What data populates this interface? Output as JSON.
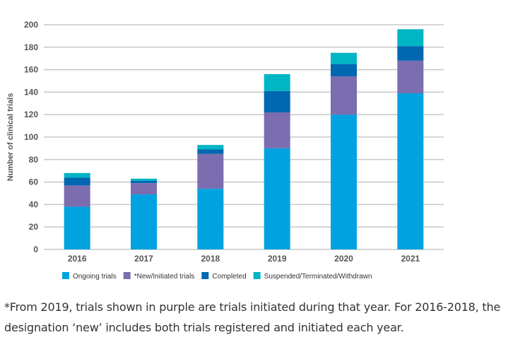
{
  "chart_data": {
    "type": "bar",
    "stacked": true,
    "title": "",
    "xlabel": "",
    "ylabel": "Number of clinical trials",
    "ylim": [
      0,
      200
    ],
    "yticks": [
      0,
      20,
      40,
      60,
      80,
      100,
      120,
      140,
      160,
      180,
      200
    ],
    "grid": true,
    "legend_position": "bottom",
    "categories": [
      "2016",
      "2017",
      "2018",
      "2019",
      "2020",
      "2021"
    ],
    "series": [
      {
        "name": "Ongoing trials",
        "color": "#00a3e0",
        "values": [
          38,
          49,
          54,
          90,
          120,
          139
        ]
      },
      {
        "name": "*New/Initiated trials",
        "color": "#7b6db0",
        "values": [
          19,
          10,
          31,
          32,
          34,
          29
        ]
      },
      {
        "name": "Completed",
        "color": "#0067b1",
        "values": [
          7,
          2,
          4,
          19,
          11,
          13
        ]
      },
      {
        "name": "Suspended/Terminated/Withdrawn",
        "color": "#00b5c4",
        "values": [
          4,
          2,
          4,
          15,
          10,
          15
        ]
      }
    ]
  },
  "caption": "*From 2019, trials shown in purple are trials initiated during that year. For 2016-2018, the designation ‘new’ includes both trials registered and initiated each year."
}
